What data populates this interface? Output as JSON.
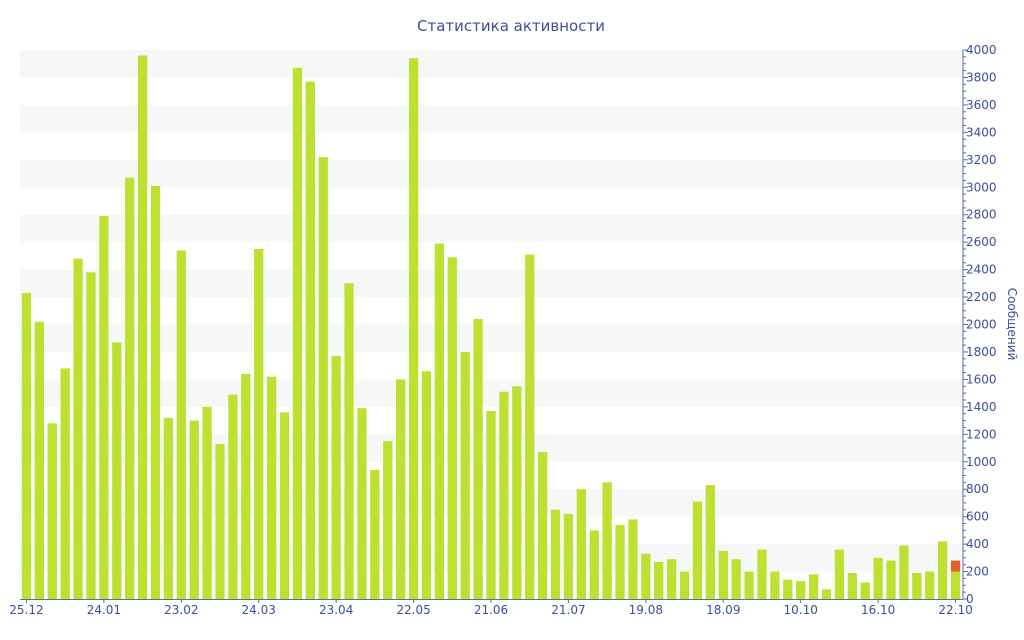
{
  "chart_data": {
    "type": "bar",
    "title": "Статистика активности",
    "xlabel": "",
    "ylabel": "Сообщений",
    "ylim": [
      0,
      4000
    ],
    "y_ticks": [
      0,
      200,
      400,
      600,
      800,
      1000,
      1200,
      1400,
      1600,
      1800,
      2000,
      2200,
      2400,
      2600,
      2800,
      3000,
      3200,
      3400,
      3600,
      3800,
      4000
    ],
    "y_axis_side": "right",
    "grid": "alternating horizontal bands",
    "x_tick_labels": [
      {
        "index": 0,
        "label": "25.12"
      },
      {
        "index": 6,
        "label": "24.01"
      },
      {
        "index": 12,
        "label": "23.02"
      },
      {
        "index": 18,
        "label": "24.03"
      },
      {
        "index": 24,
        "label": "23.04"
      },
      {
        "index": 30,
        "label": "22.05"
      },
      {
        "index": 36,
        "label": "21.06"
      },
      {
        "index": 42,
        "label": "21.07"
      },
      {
        "index": 48,
        "label": "19.08"
      },
      {
        "index": 54,
        "label": "18.09"
      },
      {
        "index": 60,
        "label": "10.10"
      },
      {
        "index": 66,
        "label": "16.10"
      },
      {
        "index": 72,
        "label": "22.10"
      }
    ],
    "series": [
      {
        "name": "messages",
        "color": "#bde032",
        "values": [
          2230,
          2020,
          1280,
          1680,
          2480,
          2380,
          2790,
          1870,
          3070,
          3960,
          3010,
          1320,
          2540,
          1300,
          1400,
          1130,
          1490,
          1640,
          2550,
          1620,
          1360,
          3870,
          3770,
          3220,
          1770,
          2300,
          1390,
          940,
          1150,
          1600,
          3940,
          1660,
          2590,
          2490,
          1800,
          2040,
          1370,
          1510,
          1550,
          2510,
          1070,
          650,
          620,
          800,
          500,
          850,
          540,
          580,
          330,
          270,
          290,
          200,
          710,
          830,
          350,
          290,
          200,
          360,
          200,
          140,
          130,
          180,
          70,
          360,
          190,
          120,
          300,
          280,
          390,
          190,
          200,
          420,
          200
        ]
      },
      {
        "name": "current",
        "color": "#e0622c",
        "values": [
          0,
          0,
          0,
          0,
          0,
          0,
          0,
          0,
          0,
          0,
          0,
          0,
          0,
          0,
          0,
          0,
          0,
          0,
          0,
          0,
          0,
          0,
          0,
          0,
          0,
          0,
          0,
          0,
          0,
          0,
          0,
          0,
          0,
          0,
          0,
          0,
          0,
          0,
          0,
          0,
          0,
          0,
          0,
          0,
          0,
          0,
          0,
          0,
          0,
          0,
          0,
          0,
          0,
          0,
          0,
          0,
          0,
          0,
          0,
          0,
          0,
          0,
          0,
          0,
          0,
          0,
          0,
          0,
          0,
          0,
          0,
          0,
          80
        ]
      }
    ]
  }
}
